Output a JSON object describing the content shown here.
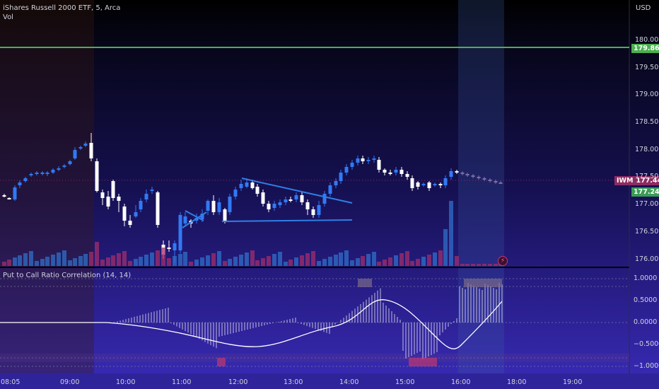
{
  "header": {
    "symbol_title": "iShares Russell 2000 ETF, 5, Arca",
    "volume_label": "Vol",
    "currency": "USD"
  },
  "price_axis": {
    "ticks": [
      "180.00",
      "179.50",
      "179.00",
      "178.50",
      "178.00",
      "177.50",
      "177.00",
      "176.50",
      "176.00"
    ],
    "alert_line_value": "179.86",
    "last_price_label": "IWM",
    "last_price_value": "177.44",
    "secondary_price_value": "177.24"
  },
  "indicator": {
    "title": "Put to Call Ratio Correlation (14, 14)",
    "ticks": [
      "1.0000",
      "0.5000",
      "0.0000",
      "−0.5000",
      "−1.0000"
    ]
  },
  "time_axis": {
    "ticks": [
      "08:05",
      "09:00",
      "10:00",
      "11:00",
      "12:00",
      "13:00",
      "14:00",
      "15:00",
      "16:00",
      "18:00",
      "19:00"
    ]
  },
  "colors": {
    "up": "#3179f5",
    "down": "#ffffff",
    "vol_up": "#2f6fc8",
    "vol_down": "#a12d6b",
    "alert": "#4caf50",
    "last_price_badge": "#8e2b62",
    "secondary_badge": "#3a9b56",
    "trendline": "#2f7fe6"
  },
  "icons": {
    "flash": "lightning-icon"
  }
}
